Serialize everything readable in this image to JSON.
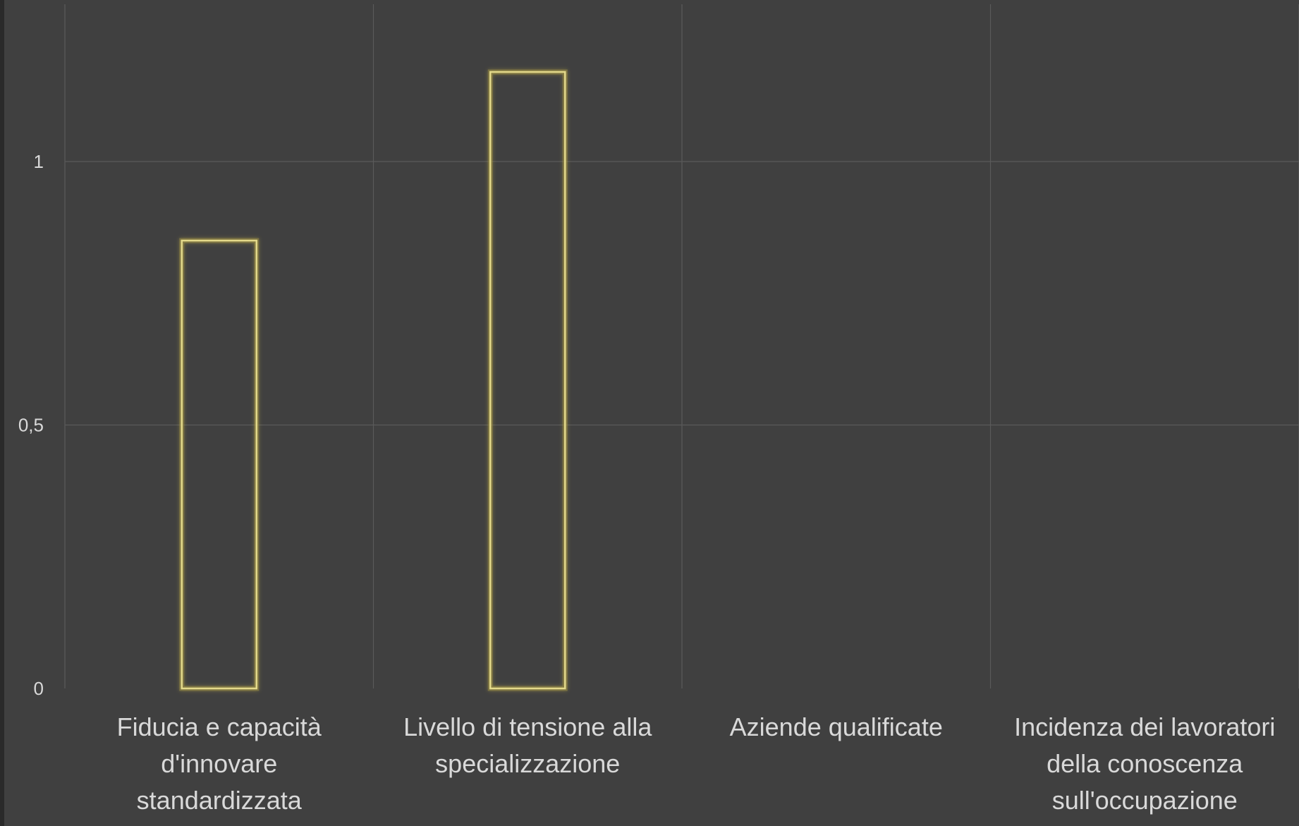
{
  "chart_data": {
    "type": "bar",
    "title": "",
    "xlabel": "",
    "ylabel": "",
    "categories": [
      [
        "Fiducia e capacità",
        "d'innovare",
        "standardizzata"
      ],
      [
        "Livello di tensione alla",
        "specializzazione"
      ],
      [
        "Aziende qualificate"
      ],
      [
        "Incidenza dei lavoratori",
        "della conoscenza",
        "sull'occupazione"
      ]
    ],
    "values": [
      0.85,
      1.17,
      null,
      null
    ],
    "ylim": [
      0,
      1.3
    ],
    "yticks": [
      0,
      0.5,
      1
    ],
    "ytick_labels": [
      "0",
      "0,5",
      "1"
    ],
    "grid": true,
    "colors": {
      "background": "#404040",
      "grid": "#5a5a5a",
      "bar_stroke": "#e3d98a",
      "bar_glow": "#a89a45",
      "text": "#d9d9d9"
    }
  }
}
